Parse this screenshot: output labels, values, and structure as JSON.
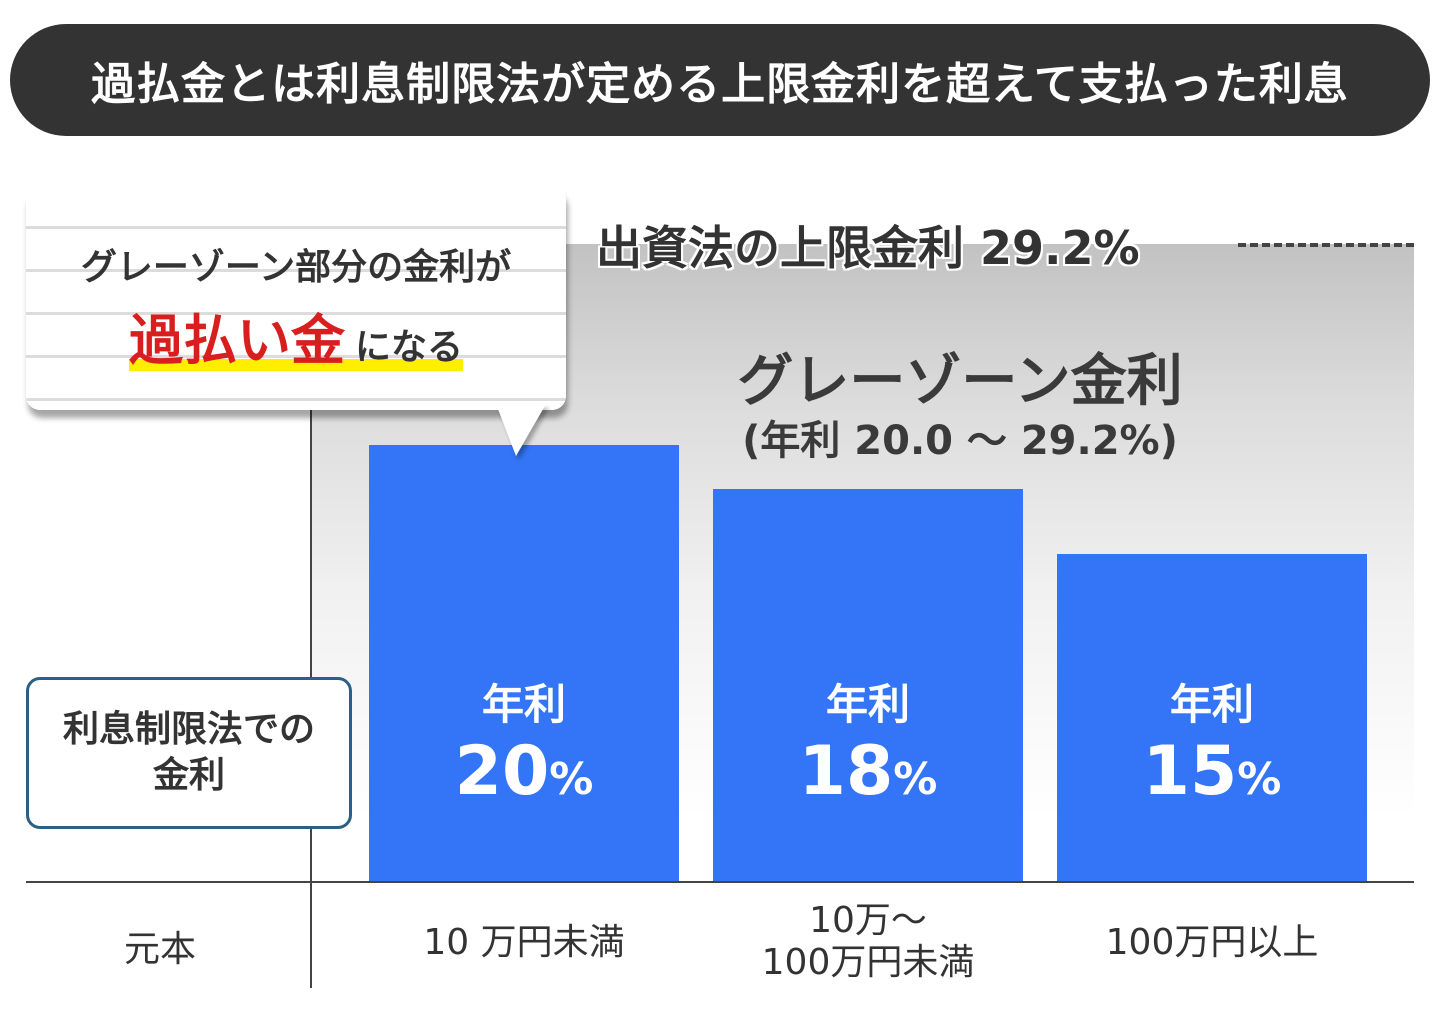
{
  "title": "過払金とは利息制限法が定める上限金利を超えて支払った利息",
  "callout": {
    "line1": "グレーゾーン部分の金利が",
    "highlight": "過払い金",
    "suffix": "になる"
  },
  "chart_data": {
    "type": "bar",
    "categories": [
      "10 万円未満",
      "10万～\n100万円未満",
      "100万円以上"
    ],
    "values": [
      20,
      18,
      15
    ],
    "unit": "%",
    "bar_label_prefix": "年利",
    "xlabel": "元本",
    "ylabel": "利息制限法での\n金利",
    "reference_line": {
      "label": "出資法の上限金利 29.2%",
      "value": 29.2
    },
    "gray_zone": {
      "title": "グレーゾーン金利",
      "range_label": "(年利 20.0 ～ 29.2%)",
      "from": 20.0,
      "to": 29.2
    },
    "ylim": [
      0,
      29.2
    ],
    "bar_color": "#3375f6"
  }
}
